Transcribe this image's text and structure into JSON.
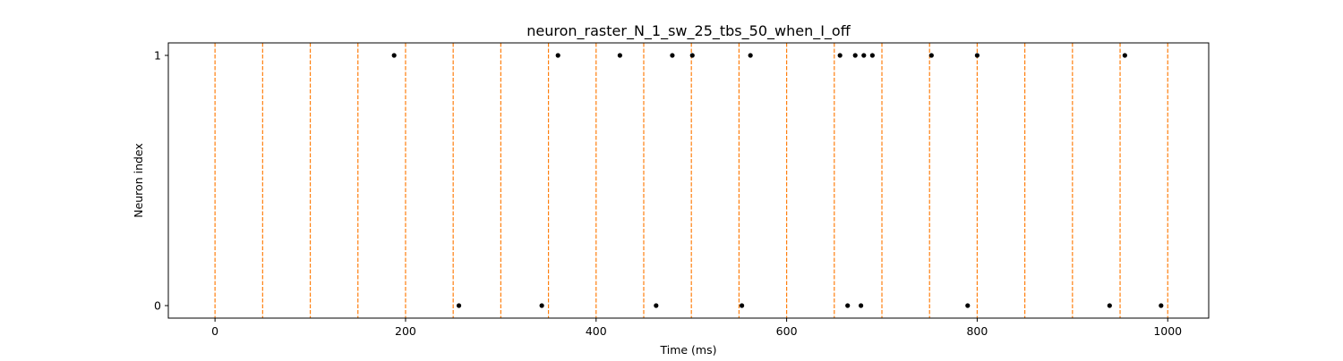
{
  "chart_data": {
    "type": "scatter",
    "title": "neuron_raster_N_1_sw_25_tbs_50_when_I_off",
    "xlabel": "Time (ms)",
    "ylabel": "Neuron index",
    "xlim": [
      -49,
      1043
    ],
    "ylim": [
      -0.05,
      1.05
    ],
    "xticks": [
      0,
      200,
      400,
      600,
      800,
      1000
    ],
    "xtick_labels": [
      "0",
      "200",
      "400",
      "600",
      "800",
      "1000"
    ],
    "yticks": [
      0,
      1
    ],
    "ytick_labels": [
      "0",
      "1"
    ],
    "grid": false,
    "legend": "none",
    "spikes": [
      {
        "neuron": 1,
        "times": [
          188,
          360,
          425,
          480,
          501,
          562,
          656,
          672,
          681,
          690,
          752,
          800,
          955
        ]
      },
      {
        "neuron": 0,
        "times": [
          256,
          343,
          463,
          553,
          664,
          678,
          790,
          939,
          993
        ]
      }
    ],
    "vertical_lines": {
      "x": [
        0,
        50,
        100,
        150,
        200,
        250,
        300,
        350,
        400,
        450,
        500,
        550,
        600,
        650,
        700,
        750,
        800,
        850,
        900,
        950,
        1000
      ],
      "style": "dashed",
      "color": "#ff7f0e"
    },
    "marker_color": "#000000"
  }
}
